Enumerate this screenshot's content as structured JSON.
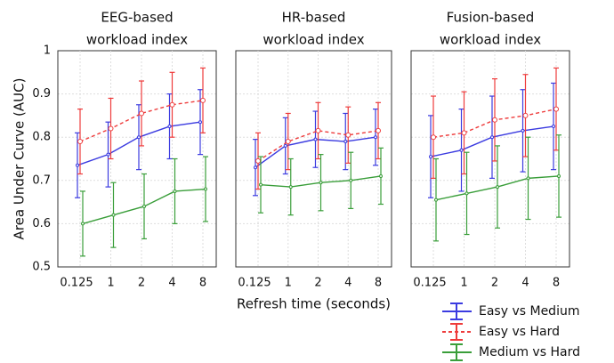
{
  "chart_data": [
    {
      "type": "line",
      "title": [
        "EEG-based",
        "workload index"
      ],
      "y_label": "Area Under Curve (AUC)",
      "categories": [
        "0.125",
        "1",
        "2",
        "4",
        "8"
      ],
      "ylim": [
        0.5,
        1
      ],
      "yticks": [
        0.5,
        0.6,
        0.7,
        0.8,
        0.9,
        1
      ],
      "show_ytick_labels": true,
      "grid": true,
      "series": [
        {
          "name": "Easy vs Medium",
          "color": "#3b3be0",
          "linestyle": "solid",
          "values": [
            0.735,
            0.76,
            0.8,
            0.825,
            0.835
          ],
          "errors": [
            0.075,
            0.075,
            0.075,
            0.075,
            0.075
          ]
        },
        {
          "name": "Easy vs Hard",
          "color": "#ee3b3b",
          "linestyle": "dashed",
          "values": [
            0.79,
            0.82,
            0.855,
            0.875,
            0.885
          ],
          "errors": [
            0.075,
            0.07,
            0.075,
            0.075,
            0.075
          ]
        },
        {
          "name": "Medium vs Hard",
          "color": "#3a9e3a",
          "linestyle": "solid",
          "values": [
            0.6,
            0.62,
            0.64,
            0.675,
            0.68
          ],
          "errors": [
            0.075,
            0.075,
            0.075,
            0.075,
            0.075
          ]
        }
      ]
    },
    {
      "type": "line",
      "title": [
        "HR-based",
        "workload index"
      ],
      "x_label": "Refresh time (seconds)",
      "categories": [
        "0.125",
        "1",
        "2",
        "4",
        "8"
      ],
      "ylim": [
        0.5,
        1
      ],
      "yticks": [
        0.5,
        0.6,
        0.7,
        0.8,
        0.9,
        1
      ],
      "show_ytick_labels": false,
      "grid": true,
      "series": [
        {
          "name": "Easy vs Medium",
          "color": "#3b3be0",
          "linestyle": "solid",
          "values": [
            0.73,
            0.78,
            0.795,
            0.79,
            0.8
          ],
          "errors": [
            0.065,
            0.065,
            0.065,
            0.065,
            0.065
          ]
        },
        {
          "name": "Easy vs Hard",
          "color": "#ee3b3b",
          "linestyle": "dashed",
          "values": [
            0.745,
            0.79,
            0.815,
            0.805,
            0.815
          ],
          "errors": [
            0.065,
            0.065,
            0.065,
            0.065,
            0.065
          ]
        },
        {
          "name": "Medium vs Hard",
          "color": "#3a9e3a",
          "linestyle": "solid",
          "values": [
            0.69,
            0.685,
            0.695,
            0.7,
            0.71
          ],
          "errors": [
            0.065,
            0.065,
            0.065,
            0.065,
            0.065
          ]
        }
      ]
    },
    {
      "type": "line",
      "title": [
        "Fusion-based",
        "workload index"
      ],
      "categories": [
        "0.125",
        "1",
        "2",
        "4",
        "8"
      ],
      "ylim": [
        0.5,
        1
      ],
      "yticks": [
        0.5,
        0.6,
        0.7,
        0.8,
        0.9,
        1
      ],
      "show_ytick_labels": false,
      "grid": true,
      "series": [
        {
          "name": "Easy vs Medium",
          "color": "#3b3be0",
          "linestyle": "solid",
          "values": [
            0.755,
            0.77,
            0.8,
            0.815,
            0.825
          ],
          "errors": [
            0.095,
            0.095,
            0.095,
            0.095,
            0.1
          ]
        },
        {
          "name": "Easy vs Hard",
          "color": "#ee3b3b",
          "linestyle": "dashed",
          "values": [
            0.8,
            0.81,
            0.84,
            0.85,
            0.865
          ],
          "errors": [
            0.095,
            0.095,
            0.095,
            0.095,
            0.095
          ]
        },
        {
          "name": "Medium vs Hard",
          "color": "#3a9e3a",
          "linestyle": "solid",
          "values": [
            0.655,
            0.67,
            0.685,
            0.705,
            0.71
          ],
          "errors": [
            0.095,
            0.095,
            0.095,
            0.095,
            0.095
          ]
        }
      ]
    }
  ]
}
